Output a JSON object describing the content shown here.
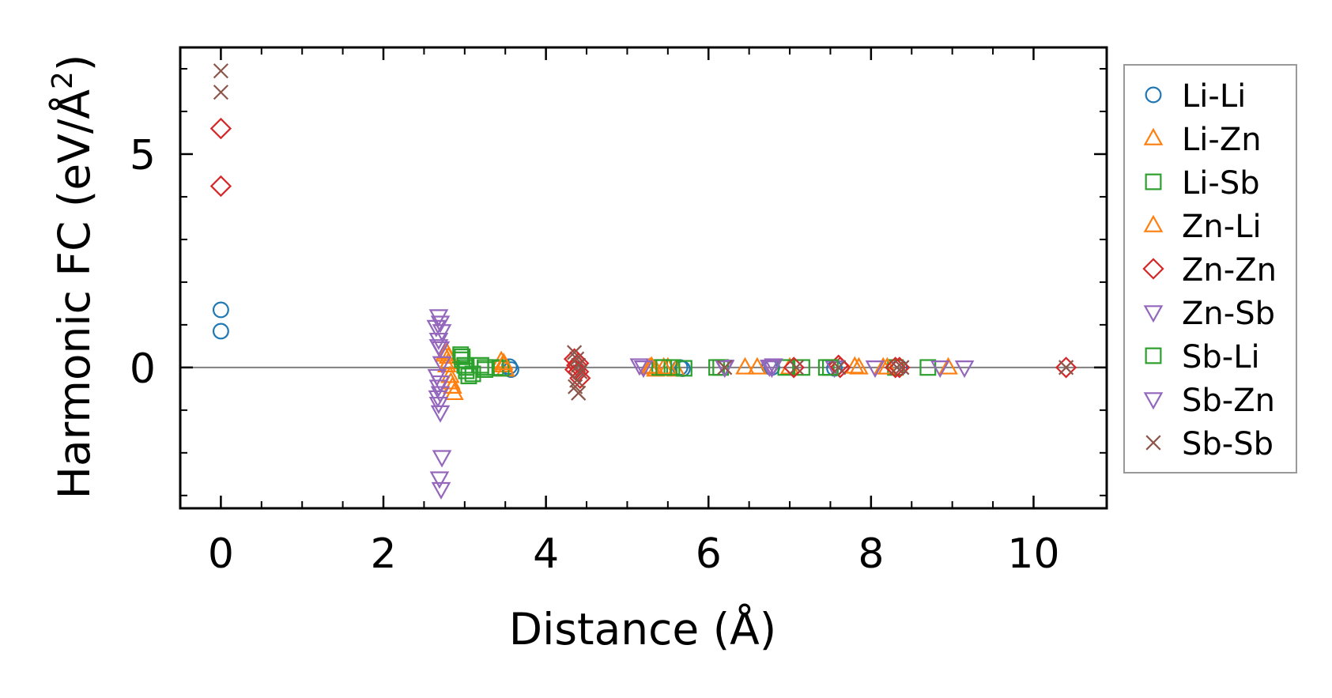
{
  "chart_data": {
    "type": "scatter",
    "title": "",
    "xlabel": "Distance (Å)",
    "ylabel_main": "Harmonic FC (eV/Å",
    "ylabel_sup": "2",
    "ylabel_end": ")",
    "xlim": [
      -0.5,
      10.9
    ],
    "ylim": [
      -3.3,
      7.5
    ],
    "xticks": [
      0,
      2,
      4,
      6,
      8,
      10
    ],
    "xtick_labels": [
      "0",
      "2",
      "4",
      "6",
      "8",
      "10"
    ],
    "yticks": [
      0,
      5
    ],
    "ytick_labels": [
      "0",
      "5"
    ],
    "zero_line": true,
    "legend_position": "right",
    "series": [
      {
        "name": "Li-Li",
        "color": "#1f77b4",
        "marker": "circle",
        "x": [
          0,
          0,
          3.55,
          3.57,
          5.65,
          5.68,
          6.75,
          6.78,
          7.55,
          8.35
        ],
        "y": [
          1.35,
          0.85,
          0.02,
          -0.05,
          0.0,
          -0.03,
          0.02,
          0.0,
          -0.02,
          0.0
        ]
      },
      {
        "name": "Li-Zn",
        "color": "#ff7f0e",
        "marker": "triangle-up",
        "x": [
          2.78,
          2.8,
          2.8,
          2.82,
          2.85,
          2.87,
          3.45,
          3.48,
          3.5,
          5.28,
          5.35,
          5.5,
          5.6,
          6.45,
          7.0,
          7.85,
          8.15,
          8.95
        ],
        "y": [
          0.35,
          0.25,
          0.12,
          -0.2,
          -0.45,
          -0.6,
          0.15,
          0.05,
          -0.05,
          0.0,
          -0.05,
          0.0,
          -0.05,
          0.0,
          0.0,
          0.0,
          0.0,
          0.0
        ]
      },
      {
        "name": "Li-Sb",
        "color": "#2ca02c",
        "marker": "square",
        "x": [
          2.95,
          2.97,
          3.0,
          3.02,
          3.05,
          3.2,
          3.25,
          3.38,
          3.45,
          5.4,
          5.55,
          5.7,
          6.15,
          6.95,
          7.15,
          7.45,
          8.3,
          8.7
        ],
        "y": [
          0.3,
          0.18,
          0.05,
          -0.08,
          -0.2,
          0.05,
          -0.05,
          0.0,
          -0.02,
          0.0,
          0.0,
          -0.02,
          0.0,
          0.0,
          0.0,
          0.0,
          0.0,
          0.0
        ]
      },
      {
        "name": "Zn-Li",
        "color": "#ff7f0e",
        "marker": "triangle-up",
        "x": [
          2.75,
          2.78,
          2.83,
          3.48,
          5.3,
          5.45,
          6.6,
          7.8,
          8.2
        ],
        "y": [
          0.3,
          0.05,
          -0.35,
          0.1,
          0.02,
          0.0,
          0.0,
          0.02,
          0.0
        ]
      },
      {
        "name": "Zn-Zn",
        "color": "#d62728",
        "marker": "diamond",
        "x": [
          0,
          0,
          4.35,
          4.38,
          4.4,
          4.42,
          4.36,
          4.4,
          7.05,
          7.6,
          7.62,
          8.3,
          8.35,
          10.4
        ],
        "y": [
          5.6,
          4.25,
          0.2,
          0.05,
          -0.1,
          -0.25,
          -0.05,
          0.1,
          0.0,
          0.05,
          0.0,
          0.0,
          0.0,
          0.0
        ]
      },
      {
        "name": "Zn-Sb",
        "color": "#9467bd",
        "marker": "triangle-down",
        "x": [
          2.68,
          2.7,
          2.72,
          2.68,
          2.7,
          2.72,
          2.66,
          2.68,
          2.7,
          2.68,
          2.7,
          2.72,
          5.15,
          6.2,
          6.75,
          6.8,
          7.55,
          8.05,
          8.85
        ],
        "y": [
          1.2,
          1.05,
          0.85,
          0.65,
          0.45,
          0.1,
          -0.2,
          -0.45,
          -0.6,
          -0.85,
          -1.05,
          -2.1,
          0.05,
          0.02,
          0.02,
          0.05,
          0.0,
          0.0,
          0.0
        ]
      },
      {
        "name": "Sb-Li",
        "color": "#2ca02c",
        "marker": "square",
        "x": [
          2.97,
          3.02,
          3.1,
          3.25,
          5.45,
          6.1,
          7.5
        ],
        "y": [
          0.25,
          0.0,
          -0.15,
          0.0,
          0.0,
          0.0,
          0.0
        ]
      },
      {
        "name": "Sb-Zn",
        "color": "#9467bd",
        "marker": "triangle-down",
        "x": [
          2.65,
          2.68,
          2.7,
          2.67,
          2.69,
          2.71,
          5.2,
          6.2,
          6.78,
          9.15
        ],
        "y": [
          0.95,
          0.5,
          -0.35,
          -0.7,
          -2.6,
          -2.85,
          0.0,
          0.0,
          0.0,
          0.0
        ]
      },
      {
        "name": "Sb-Sb",
        "color": "#8c564b",
        "marker": "x",
        "x": [
          0,
          0,
          4.35,
          4.38,
          4.4,
          4.42,
          4.38,
          4.4,
          4.36,
          6.2,
          7.08,
          7.6,
          8.32,
          8.38,
          10.4
        ],
        "y": [
          6.95,
          6.45,
          0.35,
          0.2,
          0.05,
          -0.1,
          -0.3,
          -0.6,
          -0.45,
          0.0,
          0.0,
          0.0,
          0.0,
          0.0,
          0.0
        ]
      }
    ]
  }
}
